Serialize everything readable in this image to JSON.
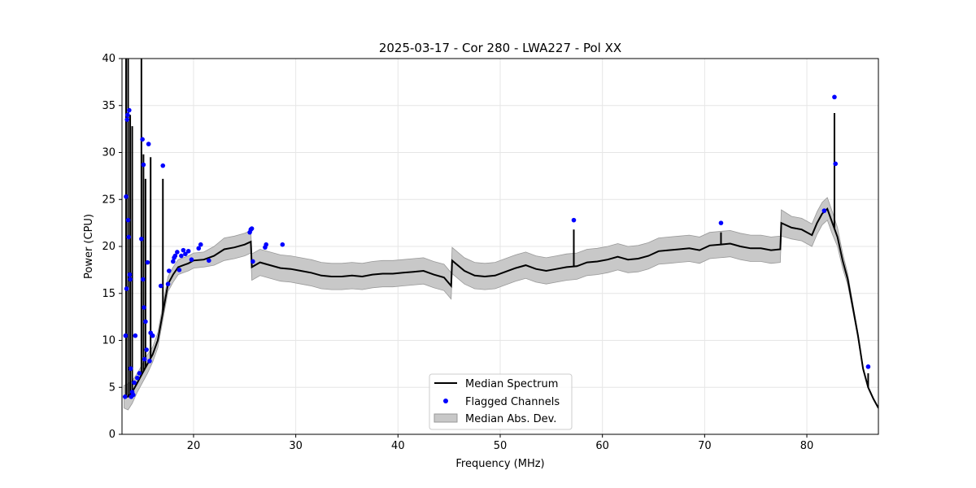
{
  "chart_data": {
    "type": "line",
    "title": "2025-03-17 - Cor 280 - LWA227 - Pol XX",
    "xlabel": "Frequency (MHz)",
    "ylabel": "Power (CPU)",
    "xlim": [
      13,
      87
    ],
    "ylim": [
      0,
      40
    ],
    "xticks": [
      20,
      30,
      40,
      50,
      60,
      70,
      80
    ],
    "yticks": [
      0,
      5,
      10,
      15,
      20,
      25,
      30,
      35,
      40
    ],
    "grid": true,
    "legend_position": "lower-center",
    "legend": [
      "Median Spectrum",
      "Flagged Channels",
      "Median Abs. Dev."
    ],
    "colors": {
      "median": "#000000",
      "flagged": "#0000ff",
      "mad": "#c8c8c8",
      "mad_edge": "#999999"
    },
    "median_spectrum": {
      "x": [
        13.2,
        13.6,
        14.0,
        14.5,
        15.0,
        15.5,
        16.0,
        16.5,
        17.0,
        17.5,
        18.0,
        18.5,
        19.0,
        19.5,
        20.0,
        21.0,
        22.0,
        23.0,
        24.0,
        25.0,
        25.6,
        25.7,
        26.5,
        27.5,
        28.5,
        29.5,
        30.5,
        31.5,
        32.5,
        33.5,
        34.5,
        35.5,
        36.5,
        37.5,
        38.5,
        39.5,
        40.5,
        41.5,
        42.5,
        43.5,
        44.5,
        45.2,
        45.3,
        46.5,
        47.5,
        48.5,
        49.5,
        50.5,
        51.5,
        52.5,
        53.5,
        54.5,
        55.5,
        56.5,
        57.5,
        58.5,
        59.5,
        60.5,
        61.5,
        62.5,
        63.5,
        64.5,
        65.5,
        66.5,
        67.5,
        68.5,
        69.5,
        70.5,
        71.5,
        72.5,
        73.5,
        74.5,
        75.5,
        76.5,
        77.4,
        77.5,
        78.5,
        79.5,
        80.5,
        81.0,
        81.5,
        82.0,
        82.5,
        83.0,
        83.5,
        84.0,
        84.5,
        85.0,
        85.5,
        86.0,
        86.5,
        87.0
      ],
      "y": [
        4.0,
        4.0,
        4.5,
        5.5,
        6.5,
        7.5,
        8.5,
        10.0,
        13.0,
        16.0,
        17.0,
        17.8,
        18.0,
        18.2,
        18.5,
        18.6,
        19.0,
        19.7,
        19.9,
        20.2,
        20.5,
        17.8,
        18.3,
        18.0,
        17.7,
        17.6,
        17.4,
        17.2,
        16.9,
        16.8,
        16.8,
        16.9,
        16.8,
        17.0,
        17.1,
        17.1,
        17.2,
        17.3,
        17.4,
        17.0,
        16.7,
        15.8,
        18.5,
        17.4,
        16.9,
        16.8,
        16.9,
        17.3,
        17.7,
        18.0,
        17.6,
        17.4,
        17.6,
        17.8,
        17.9,
        18.3,
        18.4,
        18.6,
        18.9,
        18.6,
        18.7,
        19.0,
        19.5,
        19.6,
        19.7,
        19.8,
        19.6,
        20.1,
        20.2,
        20.3,
        20.0,
        19.8,
        19.8,
        19.6,
        19.7,
        22.5,
        22.0,
        21.8,
        21.2,
        22.5,
        23.5,
        24.0,
        22.5,
        21.0,
        18.5,
        16.5,
        13.5,
        10.5,
        7.0,
        5.0,
        3.8,
        2.8
      ]
    },
    "mad_halfwidth": [
      1.2,
      1.4,
      1.2,
      1.0,
      1.0,
      1.0,
      0.8,
      0.8,
      0.8,
      0.8,
      0.8,
      0.8,
      0.8,
      0.8,
      0.8,
      0.8,
      1.0,
      1.2,
      1.2,
      1.2,
      1.2,
      1.4,
      1.4,
      1.4,
      1.4,
      1.4,
      1.4,
      1.4,
      1.4,
      1.4,
      1.4,
      1.4,
      1.4,
      1.4,
      1.4,
      1.4,
      1.4,
      1.4,
      1.4,
      1.4,
      1.4,
      1.4,
      1.4,
      1.4,
      1.4,
      1.4,
      1.4,
      1.4,
      1.4,
      1.4,
      1.4,
      1.4,
      1.4,
      1.4,
      1.4,
      1.4,
      1.4,
      1.4,
      1.4,
      1.4,
      1.4,
      1.4,
      1.4,
      1.4,
      1.4,
      1.4,
      1.4,
      1.4,
      1.4,
      1.4,
      1.4,
      1.4,
      1.4,
      1.4,
      1.4,
      1.4,
      1.2,
      1.2,
      1.2,
      1.2,
      1.2,
      1.2,
      1.2,
      1.0,
      0.8,
      0.6,
      0.4,
      0.3,
      0.2,
      0.1,
      0.1,
      0.1
    ],
    "spikes": [
      {
        "x": 13.4,
        "y": 40
      },
      {
        "x": 13.6,
        "y": 40
      },
      {
        "x": 13.8,
        "y": 34.0
      },
      {
        "x": 14.0,
        "y": 32.8
      },
      {
        "x": 14.9,
        "y": 40
      },
      {
        "x": 15.1,
        "y": 29.8
      },
      {
        "x": 15.3,
        "y": 27.2
      },
      {
        "x": 15.8,
        "y": 29.5
      },
      {
        "x": 17.0,
        "y": 27.2
      },
      {
        "x": 57.2,
        "y": 21.8
      },
      {
        "x": 71.6,
        "y": 21.5
      },
      {
        "x": 82.7,
        "y": 34.2
      },
      {
        "x": 86.0,
        "y": 6.5
      }
    ],
    "flagged_channels": {
      "x": [
        13.3,
        13.35,
        13.4,
        13.45,
        13.5,
        13.55,
        13.6,
        13.65,
        13.7,
        13.75,
        13.8,
        13.85,
        13.9,
        14.0,
        14.1,
        14.2,
        14.3,
        14.5,
        14.7,
        14.9,
        15.0,
        15.05,
        15.1,
        15.15,
        15.2,
        15.3,
        15.4,
        15.5,
        15.6,
        15.7,
        15.8,
        16.0,
        16.8,
        17.0,
        17.5,
        17.6,
        18.0,
        18.1,
        18.2,
        18.4,
        18.6,
        18.8,
        19.0,
        19.2,
        19.5,
        19.8,
        20.5,
        20.7,
        21.5,
        25.5,
        25.6,
        25.7,
        25.8,
        27.0,
        27.1,
        28.7,
        57.2,
        71.6,
        81.7,
        82.7,
        82.8,
        86.0
      ],
      "y": [
        4.0,
        10.5,
        25.3,
        15.5,
        33.5,
        34.0,
        22.8,
        21.0,
        34.5,
        17.0,
        16.5,
        7.0,
        4.0,
        4.5,
        4.2,
        5.5,
        10.5,
        6.0,
        6.5,
        20.8,
        31.4,
        16.5,
        28.7,
        13.5,
        8.0,
        12.0,
        9.0,
        18.3,
        30.9,
        7.8,
        10.8,
        10.5,
        15.8,
        28.6,
        16.0,
        17.4,
        18.4,
        18.8,
        19.0,
        19.4,
        17.5,
        19.0,
        19.6,
        19.2,
        19.5,
        18.6,
        19.8,
        20.2,
        18.5,
        21.5,
        21.8,
        21.9,
        18.4,
        19.9,
        20.2,
        20.2,
        22.8,
        22.5,
        23.8,
        35.9,
        28.8,
        7.2
      ]
    }
  }
}
